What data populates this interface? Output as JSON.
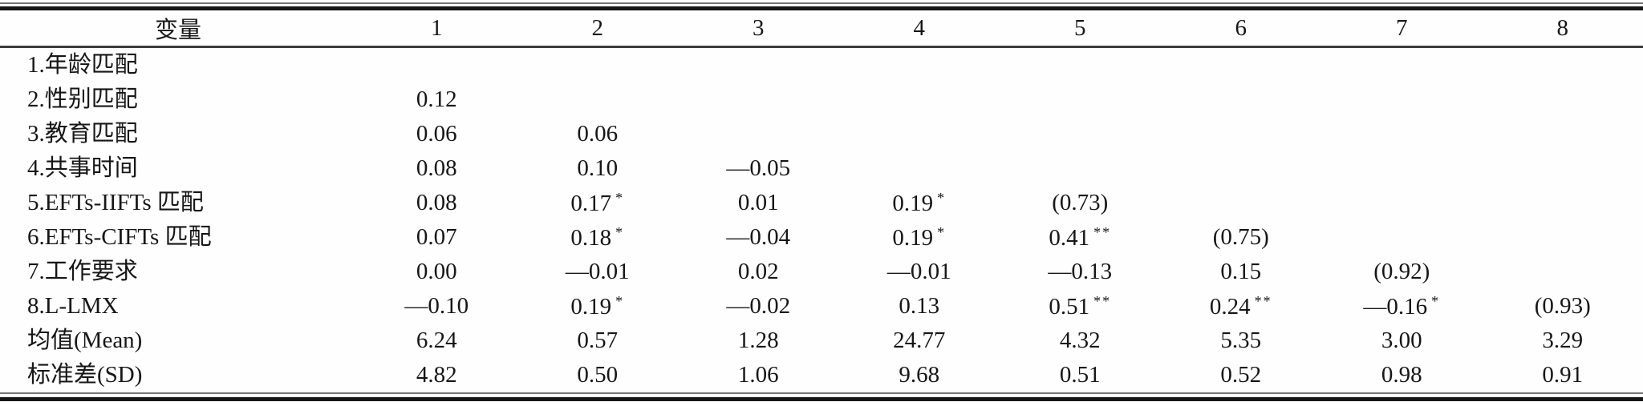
{
  "page": {
    "background": "#fefefe",
    "text_color": "#161616",
    "thick_rule_color": "#161616",
    "thin_rule_color": "#767676",
    "header_rule_color": "#3c3c3c"
  },
  "table": {
    "header": [
      "变量",
      "1",
      "2",
      "3",
      "4",
      "5",
      "6",
      "7",
      "8"
    ],
    "rows": [
      {
        "label": "1.年龄匹配",
        "cells": [
          null,
          null,
          null,
          null,
          null,
          null,
          null,
          null
        ]
      },
      {
        "label": "2.性别匹配",
        "cells": [
          {
            "v": "0.12"
          },
          null,
          null,
          null,
          null,
          null,
          null,
          null
        ]
      },
      {
        "label": "3.教育匹配",
        "cells": [
          {
            "v": "0.06"
          },
          {
            "v": "0.06"
          },
          null,
          null,
          null,
          null,
          null,
          null
        ]
      },
      {
        "label": "4.共事时间",
        "cells": [
          {
            "v": "0.08"
          },
          {
            "v": "0.10"
          },
          {
            "v": "—0.05"
          },
          null,
          null,
          null,
          null,
          null
        ]
      },
      {
        "label": "5.EFTs-IIFTs 匹配",
        "cells": [
          {
            "v": "0.08"
          },
          {
            "v": "0.17",
            "sig": "*"
          },
          {
            "v": "0.01"
          },
          {
            "v": "0.19",
            "sig": "*"
          },
          {
            "v": "(0.73)"
          },
          null,
          null,
          null
        ]
      },
      {
        "label": "6.EFTs-CIFTs 匹配",
        "cells": [
          {
            "v": "0.07"
          },
          {
            "v": "0.18",
            "sig": "*"
          },
          {
            "v": "—0.04"
          },
          {
            "v": "0.19",
            "sig": "*"
          },
          {
            "v": "0.41",
            "sig": "**"
          },
          {
            "v": "(0.75)"
          },
          null,
          null
        ]
      },
      {
        "label": "7.工作要求",
        "cells": [
          {
            "v": "0.00"
          },
          {
            "v": "—0.01"
          },
          {
            "v": "0.02"
          },
          {
            "v": "—0.01"
          },
          {
            "v": "—0.13"
          },
          {
            "v": "0.15"
          },
          {
            "v": "(0.92)"
          },
          null
        ]
      },
      {
        "label": "8.L-LMX",
        "cells": [
          {
            "v": "—0.10"
          },
          {
            "v": "0.19",
            "sig": "*"
          },
          {
            "v": "—0.02"
          },
          {
            "v": "0.13"
          },
          {
            "v": "0.51",
            "sig": "**"
          },
          {
            "v": "0.24",
            "sig": "**"
          },
          {
            "v": "—0.16",
            "sig": "*"
          },
          {
            "v": "(0.93)"
          }
        ]
      },
      {
        "label": "均值(Mean)",
        "cells": [
          {
            "v": "6.24"
          },
          {
            "v": "0.57"
          },
          {
            "v": "1.28"
          },
          {
            "v": "24.77"
          },
          {
            "v": "4.32"
          },
          {
            "v": "5.35"
          },
          {
            "v": "3.00"
          },
          {
            "v": "3.29"
          }
        ]
      },
      {
        "label": "标准差(SD)",
        "cells": [
          {
            "v": "4.82"
          },
          {
            "v": "0.50"
          },
          {
            "v": "1.06"
          },
          {
            "v": "9.68"
          },
          {
            "v": "0.51"
          },
          {
            "v": "0.52"
          },
          {
            "v": "0.98"
          },
          {
            "v": "0.91"
          }
        ]
      }
    ]
  }
}
